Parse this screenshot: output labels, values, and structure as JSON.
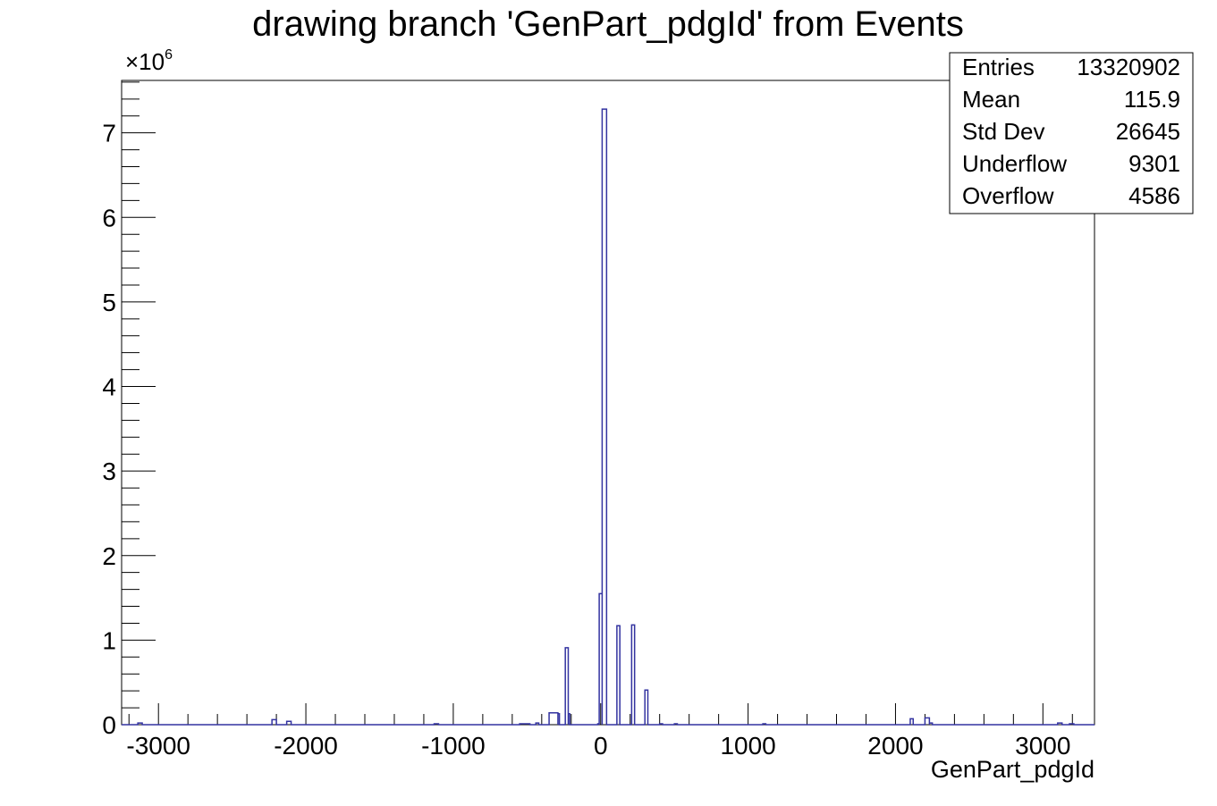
{
  "chart_data": {
    "type": "histogram",
    "title": "drawing branch 'GenPart_pdgId' from Events",
    "xlabel": "GenPart_pdgId",
    "ylabel": "",
    "y_multiplier": "×10",
    "y_multiplier_exponent": "6",
    "xlim": [
      -3250,
      3350
    ],
    "ylim": [
      0,
      7.62
    ],
    "y_unit_scale": 1000000,
    "x_ticks": [
      -3000,
      -2000,
      -1000,
      0,
      1000,
      2000,
      3000
    ],
    "x_tick_labels": [
      "-3000",
      "-2000",
      "-1000",
      "0",
      "1000",
      "2000",
      "3000"
    ],
    "y_ticks": [
      0,
      1,
      2,
      3,
      4,
      5,
      6,
      7
    ],
    "y_tick_labels": [
      "0",
      "1",
      "2",
      "3",
      "4",
      "5",
      "6",
      "7"
    ],
    "line_color": "#3333a0",
    "bins": [
      {
        "x0": -3140,
        "x1": -3110,
        "y": 0.02
      },
      {
        "x0": -2230,
        "x1": -2200,
        "y": 0.06
      },
      {
        "x0": -2130,
        "x1": -2100,
        "y": 0.04
      },
      {
        "x0": -1130,
        "x1": -1100,
        "y": 0.01
      },
      {
        "x0": -550,
        "x1": -480,
        "y": 0.01
      },
      {
        "x0": -440,
        "x1": -420,
        "y": 0.02
      },
      {
        "x0": -350,
        "x1": -290,
        "y": 0.14
      },
      {
        "x0": -290,
        "x1": -280,
        "y": 0.13
      },
      {
        "x0": -240,
        "x1": -220,
        "y": 0.91
      },
      {
        "x0": -220,
        "x1": -210,
        "y": 0.13
      },
      {
        "x0": -20,
        "x1": -10,
        "y": 0.01
      },
      {
        "x0": -10,
        "x1": 10,
        "y": 1.55
      },
      {
        "x0": 10,
        "x1": 40,
        "y": 7.28
      },
      {
        "x0": 110,
        "x1": 130,
        "y": 1.17
      },
      {
        "x0": 210,
        "x1": 230,
        "y": 1.18
      },
      {
        "x0": 300,
        "x1": 320,
        "y": 0.41
      },
      {
        "x0": 400,
        "x1": 420,
        "y": 0.01
      },
      {
        "x0": 500,
        "x1": 520,
        "y": 0.01
      },
      {
        "x0": 1100,
        "x1": 1120,
        "y": 0.01
      },
      {
        "x0": 2100,
        "x1": 2120,
        "y": 0.07
      },
      {
        "x0": 2200,
        "x1": 2230,
        "y": 0.08
      },
      {
        "x0": 2230,
        "x1": 2250,
        "y": 0.02
      },
      {
        "x0": 3100,
        "x1": 3130,
        "y": 0.02
      },
      {
        "x0": 3180,
        "x1": 3210,
        "y": 0.01
      }
    ]
  },
  "stats": {
    "rows": [
      {
        "label": "Entries",
        "value": "13320902"
      },
      {
        "label": "Mean",
        "value": "115.9"
      },
      {
        "label": "Std Dev",
        "value": "26645"
      },
      {
        "label": "Underflow",
        "value": "9301"
      },
      {
        "label": "Overflow",
        "value": "4586"
      }
    ]
  }
}
